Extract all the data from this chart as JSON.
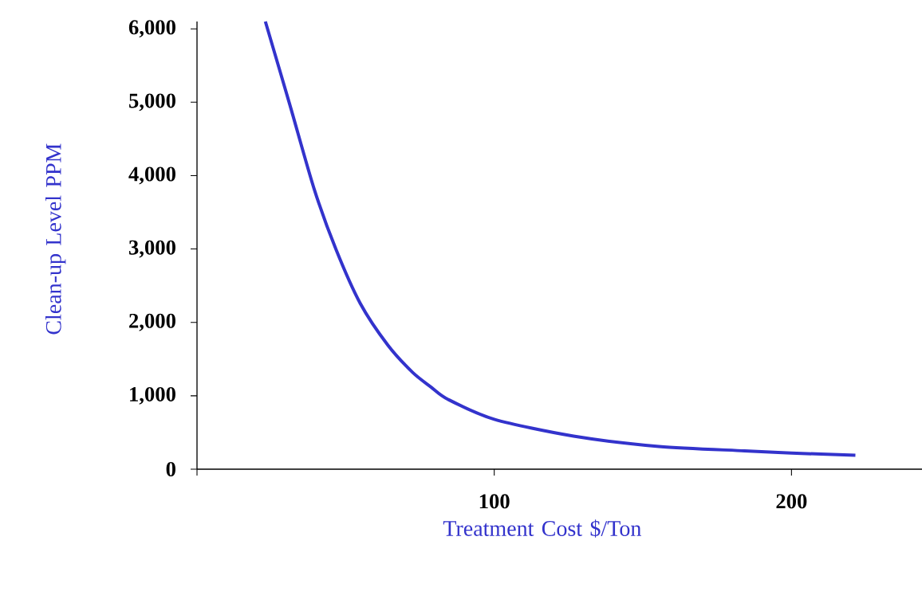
{
  "chart_data": {
    "type": "line",
    "xlabel": "Treatment Cost $/Ton",
    "ylabel": "Clean-up Level PPM",
    "x": [
      23.0,
      31.2,
      39.4,
      46.7,
      54.9,
      64.2,
      72.5,
      78.7,
      84.5,
      100,
      126.7,
      155.4,
      184.2,
      200,
      221.5
    ],
    "series": [
      {
        "color": "#3333cc",
        "values": [
          6100,
          4970,
          3820,
          3000,
          2260,
          1690,
          1320,
          1120,
          950,
          680,
          450,
          310,
          250,
          220,
          190
        ]
      }
    ],
    "xlim": [
      0,
      244
    ],
    "ylim": [
      0,
      6100
    ],
    "xticks": [
      {
        "value": 0,
        "label": null
      },
      100,
      200
    ],
    "yticks": [
      {
        "value": 0,
        "label": "0"
      },
      {
        "value": 1000,
        "label": "1,000"
      },
      {
        "value": 2000,
        "label": "2,000"
      },
      {
        "value": 3000,
        "label": "3,000"
      },
      {
        "value": 4000,
        "label": "4,000"
      },
      {
        "value": 5000,
        "label": "5,000"
      },
      {
        "value": 6000,
        "label": "6,000"
      }
    ],
    "grid": false,
    "marker": "none",
    "line_style": "solid"
  }
}
